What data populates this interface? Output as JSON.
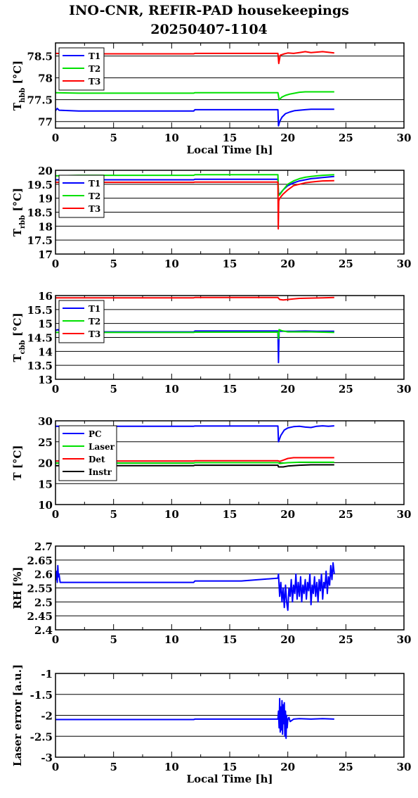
{
  "header": {
    "title": "INO-CNR, REFIR-PAD housekeepings",
    "subtitle": "20250407-1104"
  },
  "chart_data": [
    {
      "type": "line",
      "ylabel": "T",
      "ylabel_sub": "hbb",
      "ylabel_unit": " [°C]",
      "xlabel": "Local Time [h]",
      "xlim": [
        0,
        30
      ],
      "ylim": [
        76.85,
        78.8
      ],
      "yticks": [
        77,
        77.5,
        78,
        78.5
      ],
      "xticks": [
        0,
        5,
        10,
        15,
        20,
        25,
        30
      ],
      "legend_position": "top-left",
      "series": [
        {
          "name": "T1",
          "color": "#0000ff",
          "x": [
            0,
            0.15,
            0.3,
            2,
            6,
            11.9,
            12,
            16,
            19.15,
            19.2,
            19.3,
            19.5,
            19.8,
            20.2,
            20.6,
            21,
            21.5,
            22,
            23,
            24
          ],
          "y": [
            77.25,
            77.3,
            77.26,
            77.24,
            77.24,
            77.24,
            77.27,
            77.27,
            77.27,
            76.9,
            77.0,
            77.1,
            77.18,
            77.22,
            77.25,
            77.26,
            77.27,
            77.28,
            77.28,
            77.28
          ]
        },
        {
          "name": "T2",
          "color": "#00e000",
          "x": [
            0,
            2,
            6,
            11.9,
            12,
            16,
            19.15,
            19.25,
            19.5,
            19.8,
            20.2,
            20.6,
            21,
            21.5,
            22,
            23,
            24
          ],
          "y": [
            77.66,
            77.65,
            77.65,
            77.65,
            77.66,
            77.66,
            77.66,
            77.5,
            77.56,
            77.6,
            77.63,
            77.65,
            77.67,
            77.68,
            77.68,
            77.68,
            77.68
          ]
        },
        {
          "name": "T3",
          "color": "#ff0000",
          "x": [
            0,
            2,
            6,
            11.9,
            12,
            16,
            19.15,
            19.22,
            19.35,
            19.7,
            20,
            20.5,
            21,
            21.5,
            22,
            23,
            24
          ],
          "y": [
            78.56,
            78.55,
            78.55,
            78.55,
            78.56,
            78.56,
            78.56,
            78.33,
            78.52,
            78.55,
            78.57,
            78.56,
            78.58,
            78.6,
            78.58,
            78.6,
            78.57
          ]
        }
      ]
    },
    {
      "type": "line",
      "ylabel": "T",
      "ylabel_sub": "rbb",
      "ylabel_unit": " [°C]",
      "xlabel": "",
      "xlim": [
        0,
        30
      ],
      "ylim": [
        17,
        20
      ],
      "yticks": [
        17,
        17.5,
        18,
        18.5,
        19,
        19.5,
        20
      ],
      "xticks": [
        0,
        5,
        10,
        15,
        20,
        25,
        30
      ],
      "legend_position": "top-left",
      "series": [
        {
          "name": "T1",
          "color": "#0000ff",
          "x": [
            0,
            2,
            6,
            11.9,
            12,
            16,
            19.15,
            19.2,
            19.3,
            19.6,
            20,
            20.5,
            21,
            21.5,
            22,
            22.5,
            23,
            24
          ],
          "y": [
            19.66,
            19.66,
            19.66,
            19.66,
            19.68,
            19.68,
            19.68,
            19.15,
            19.15,
            19.3,
            19.45,
            19.55,
            19.62,
            19.66,
            19.7,
            19.72,
            19.74,
            19.78
          ]
        },
        {
          "name": "T2",
          "color": "#00e000",
          "x": [
            0,
            2,
            6,
            11.9,
            12,
            16,
            19.15,
            19.2,
            19.3,
            19.6,
            20,
            20.5,
            21,
            21.5,
            22,
            22.5,
            23,
            24
          ],
          "y": [
            19.8,
            19.82,
            19.82,
            19.82,
            19.84,
            19.84,
            19.84,
            19.1,
            19.12,
            19.3,
            19.5,
            19.62,
            19.7,
            19.75,
            19.78,
            19.8,
            19.82,
            19.84
          ]
        },
        {
          "name": "T3",
          "color": "#ff0000",
          "x": [
            0,
            2,
            6,
            11.9,
            12,
            16,
            19.15,
            19.18,
            19.22,
            19.3,
            19.6,
            20,
            20.5,
            21,
            21.5,
            22,
            22.5,
            23,
            24
          ],
          "y": [
            19.57,
            19.57,
            19.57,
            19.57,
            19.58,
            19.58,
            19.58,
            17.9,
            18.9,
            19.0,
            19.15,
            19.3,
            19.45,
            19.5,
            19.55,
            19.58,
            19.6,
            19.62,
            19.63
          ]
        }
      ]
    },
    {
      "type": "line",
      "ylabel": "T",
      "ylabel_sub": "cbb",
      "ylabel_unit": " [°C]",
      "xlabel": "",
      "xlim": [
        0,
        30
      ],
      "ylim": [
        13,
        16
      ],
      "yticks": [
        13,
        13.5,
        14,
        14.5,
        15,
        15.5,
        16
      ],
      "xticks": [
        0,
        5,
        10,
        15,
        20,
        25,
        30
      ],
      "legend_position": "top-left",
      "series": [
        {
          "name": "T1",
          "color": "#0000ff",
          "x": [
            0,
            0.2,
            0.5,
            2,
            6,
            11.9,
            12,
            16,
            19.15,
            19.2,
            19.25,
            19.4,
            19.8,
            20.5,
            21.5,
            22.5,
            24
          ],
          "y": [
            14.75,
            14.78,
            14.7,
            14.7,
            14.7,
            14.7,
            14.73,
            14.73,
            14.73,
            13.6,
            14.75,
            14.72,
            14.72,
            14.72,
            14.73,
            14.72,
            14.72
          ]
        },
        {
          "name": "T2",
          "color": "#00e000",
          "x": [
            0,
            2,
            6,
            11.9,
            12,
            16,
            19.15,
            19.2,
            19.25,
            19.5,
            20,
            21,
            22,
            24
          ],
          "y": [
            14.68,
            14.68,
            14.68,
            14.68,
            14.69,
            14.69,
            14.69,
            14.45,
            14.78,
            14.74,
            14.7,
            14.7,
            14.7,
            14.68
          ]
        },
        {
          "name": "T3",
          "color": "#ff0000",
          "x": [
            0,
            2,
            6,
            11.9,
            12,
            16,
            19.15,
            19.3,
            19.6,
            20,
            20.5,
            21,
            22,
            23,
            24
          ],
          "y": [
            15.92,
            15.92,
            15.92,
            15.92,
            15.93,
            15.93,
            15.93,
            15.86,
            15.84,
            15.86,
            15.88,
            15.9,
            15.91,
            15.92,
            15.93
          ]
        }
      ]
    },
    {
      "type": "line",
      "ylabel": "T [°C]",
      "ylabel_sub": "",
      "ylabel_unit": "",
      "xlabel": "",
      "xlim": [
        0,
        30
      ],
      "ylim": [
        10,
        30
      ],
      "yticks": [
        10,
        15,
        20,
        25,
        30
      ],
      "xticks": [
        0,
        5,
        10,
        15,
        20,
        25,
        30
      ],
      "legend_position": "top-left",
      "series": [
        {
          "name": "PC",
          "color": "#0000ff",
          "x": [
            0,
            2,
            6,
            11.9,
            12,
            16,
            19.15,
            19.2,
            19.4,
            19.7,
            20,
            20.5,
            21,
            21.5,
            22,
            22.5,
            23,
            23.5,
            24
          ],
          "y": [
            28.7,
            28.7,
            28.7,
            28.7,
            28.75,
            28.75,
            28.75,
            25.0,
            26.5,
            27.8,
            28.3,
            28.6,
            28.7,
            28.5,
            28.4,
            28.7,
            28.8,
            28.7,
            28.8
          ]
        },
        {
          "name": "Laser",
          "color": "#00e000",
          "x": [
            0,
            2,
            6,
            11.9,
            12,
            16,
            19.15,
            19.3,
            19.6,
            20,
            21,
            22,
            24
          ],
          "y": [
            19.9,
            19.9,
            19.9,
            19.9,
            20.0,
            20.0,
            20.0,
            19.8,
            19.9,
            20.0,
            20.1,
            20.1,
            20.1
          ]
        },
        {
          "name": "Det",
          "color": "#ff0000",
          "x": [
            0,
            2,
            6,
            11.9,
            12,
            16,
            19.15,
            19.3,
            19.6,
            20,
            20.5,
            21,
            22,
            24
          ],
          "y": [
            20.4,
            20.4,
            20.4,
            20.4,
            20.45,
            20.45,
            20.45,
            20.3,
            20.6,
            21.0,
            21.2,
            21.2,
            21.2,
            21.2
          ]
        },
        {
          "name": "Instr",
          "color": "#000000",
          "x": [
            0,
            2,
            6,
            11.9,
            12,
            16,
            19.15,
            19.2,
            19.6,
            20,
            21,
            22,
            24
          ],
          "y": [
            19.3,
            19.3,
            19.3,
            19.3,
            19.4,
            19.4,
            19.4,
            19.0,
            19.0,
            19.2,
            19.4,
            19.5,
            19.5
          ]
        }
      ]
    },
    {
      "type": "line",
      "ylabel": "RH [%]",
      "ylabel_sub": "",
      "ylabel_unit": "",
      "xlabel": "",
      "xlim": [
        0,
        30
      ],
      "ylim": [
        2.4,
        2.7
      ],
      "yticks": [
        2.4,
        2.45,
        2.5,
        2.55,
        2.6,
        2.65,
        2.7
      ],
      "xticks": [
        0,
        5,
        10,
        15,
        20,
        25,
        30
      ],
      "legend_position": "none",
      "series": [
        {
          "name": "",
          "color": "#0000ff",
          "x": [
            0,
            0.05,
            0.1,
            0.15,
            0.2,
            0.25,
            0.3,
            0.4,
            0.6,
            1,
            3,
            6,
            11.9,
            12,
            16,
            19.15,
            19.2,
            19.3,
            19.4,
            19.5,
            19.6,
            19.7,
            19.8,
            19.9,
            20.0,
            20.1,
            20.2,
            20.3,
            20.4,
            20.5,
            20.6,
            20.7,
            20.8,
            20.9,
            21.0,
            21.1,
            21.2,
            21.3,
            21.4,
            21.5,
            21.6,
            21.7,
            21.8,
            21.9,
            22.0,
            22.1,
            22.2,
            22.3,
            22.4,
            22.5,
            22.6,
            22.7,
            22.8,
            22.9,
            23.0,
            23.1,
            23.2,
            23.3,
            23.4,
            23.5,
            23.6,
            23.7,
            23.8,
            23.9,
            24.0
          ],
          "y": [
            2.6,
            2.58,
            2.61,
            2.57,
            2.63,
            2.59,
            2.6,
            2.57,
            2.57,
            2.57,
            2.57,
            2.57,
            2.57,
            2.575,
            2.575,
            2.585,
            2.6,
            2.52,
            2.57,
            2.5,
            2.55,
            2.48,
            2.56,
            2.5,
            2.47,
            2.55,
            2.52,
            2.58,
            2.5,
            2.56,
            2.53,
            2.6,
            2.51,
            2.57,
            2.52,
            2.59,
            2.5,
            2.56,
            2.53,
            2.58,
            2.51,
            2.57,
            2.54,
            2.6,
            2.49,
            2.56,
            2.53,
            2.59,
            2.52,
            2.57,
            2.5,
            2.58,
            2.54,
            2.6,
            2.51,
            2.57,
            2.55,
            2.61,
            2.53,
            2.59,
            2.56,
            2.63,
            2.58,
            2.64,
            2.6
          ]
        }
      ]
    },
    {
      "type": "line",
      "ylabel": "Laser error [a.u.]",
      "ylabel_sub": "",
      "ylabel_unit": "",
      "xlabel": "Local Time [h]",
      "xlim": [
        0,
        30
      ],
      "ylim": [
        -3,
        -1
      ],
      "yticks": [
        -3,
        -2.5,
        -2,
        -1.5,
        -1
      ],
      "xticks": [
        0,
        5,
        10,
        15,
        20,
        25,
        30
      ],
      "legend_position": "none",
      "series": [
        {
          "name": "",
          "color": "#0000ff",
          "x": [
            0,
            3,
            6,
            11.9,
            12,
            16,
            19.15,
            19.2,
            19.25,
            19.3,
            19.35,
            19.4,
            19.45,
            19.5,
            19.55,
            19.6,
            19.65,
            19.7,
            19.75,
            19.8,
            19.85,
            19.9,
            19.95,
            20.0,
            20.1,
            20.2,
            20.5,
            21,
            22,
            23,
            24
          ],
          "y": [
            -2.1,
            -2.1,
            -2.1,
            -2.1,
            -2.09,
            -2.09,
            -2.09,
            -1.9,
            -2.3,
            -1.6,
            -2.4,
            -1.8,
            -2.35,
            -1.65,
            -2.45,
            -1.75,
            -2.2,
            -1.7,
            -2.5,
            -1.9,
            -2.55,
            -2.0,
            -2.3,
            -2.1,
            -2.05,
            -2.15,
            -2.09,
            -2.08,
            -2.09,
            -2.08,
            -2.09
          ]
        }
      ]
    }
  ]
}
